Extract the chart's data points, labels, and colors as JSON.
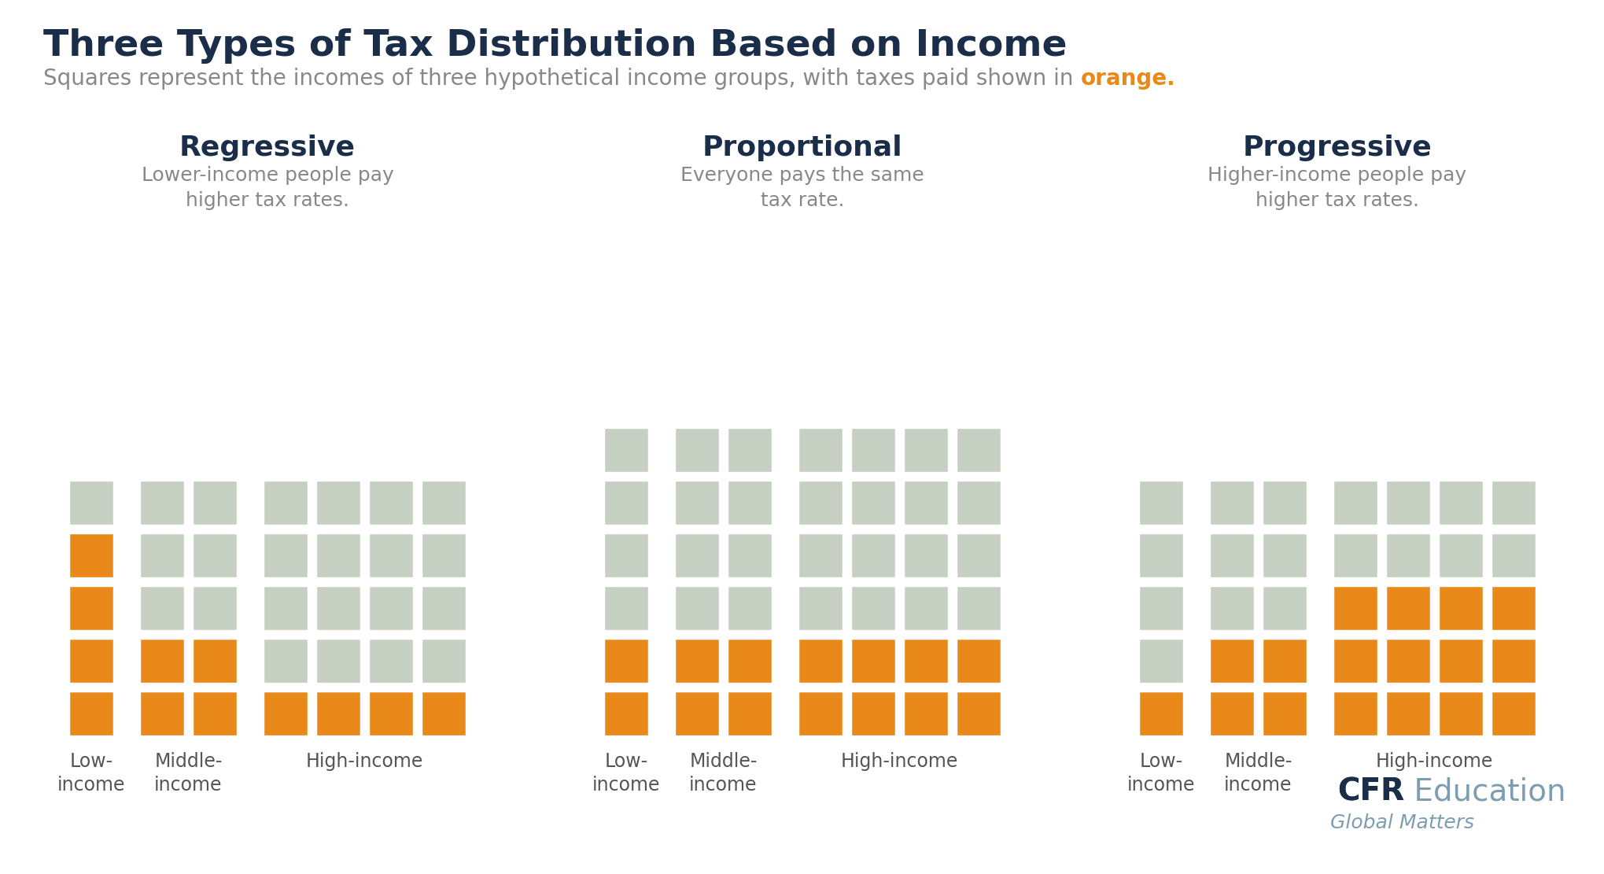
{
  "title": "Three Types of Tax Distribution Based on Income",
  "subtitle_before": "Squares represent the incomes of three hypothetical income groups, with taxes paid shown in ",
  "subtitle_orange": "orange.",
  "bg_color": "#ffffff",
  "title_color": "#1a2e4a",
  "subtitle_color": "#888888",
  "label_color": "#555555",
  "orange_color": "#e8891a",
  "gray_color": "#c5cfc2",
  "sections": [
    {
      "title": "Regressive",
      "subtitle": "Lower-income people pay\nhigher tax rates.",
      "groups": [
        {
          "label": "Low-\nincome",
          "cols": 1,
          "rows": 5,
          "orange_rows": 4
        },
        {
          "label": "Middle-\nincome",
          "cols": 2,
          "rows": 5,
          "orange_rows": 2
        },
        {
          "label": "High-income",
          "cols": 4,
          "rows": 5,
          "orange_rows": 1
        }
      ]
    },
    {
      "title": "Proportional",
      "subtitle": "Everyone pays the same\ntax rate.",
      "groups": [
        {
          "label": "Low-\nincome",
          "cols": 1,
          "rows": 6,
          "orange_rows": 2
        },
        {
          "label": "Middle-\nincome",
          "cols": 2,
          "rows": 6,
          "orange_rows": 2
        },
        {
          "label": "High-income",
          "cols": 4,
          "rows": 6,
          "orange_rows": 2
        }
      ]
    },
    {
      "title": "Progressive",
      "subtitle": "Higher-income people pay\nhigher tax rates.",
      "groups": [
        {
          "label": "Low-\nincome",
          "cols": 1,
          "rows": 5,
          "orange_rows": 1
        },
        {
          "label": "Middle-\nincome",
          "cols": 2,
          "rows": 5,
          "orange_rows": 2
        },
        {
          "label": "High-income",
          "cols": 4,
          "rows": 5,
          "orange_rows": 3
        }
      ]
    }
  ],
  "cfr_color": "#1a2e4a",
  "edu_color": "#7f9db0"
}
